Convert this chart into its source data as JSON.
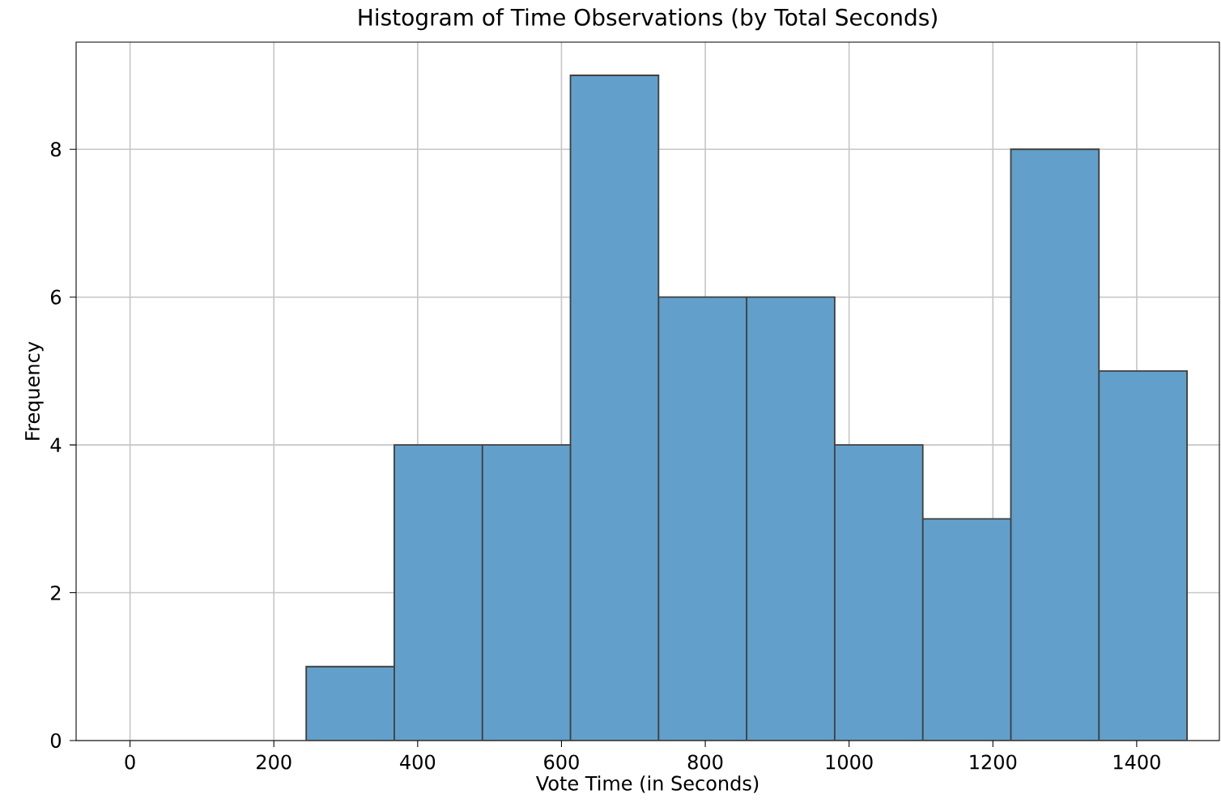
{
  "chart_data": {
    "type": "histogram",
    "title": "Histogram of Time Observations (by Total Seconds)",
    "xlabel": "Vote Time (in Seconds)",
    "ylabel": "Frequency",
    "bins": [
      245,
      367.5,
      490,
      612.5,
      735,
      857.5,
      980,
      1102.5,
      1225,
      1347.5,
      1470
    ],
    "values": [
      1,
      4,
      4,
      9,
      6,
      6,
      4,
      3,
      8,
      5
    ],
    "color": "#62a0cb",
    "xlim": [
      -75,
      1515
    ],
    "ylim": [
      0,
      9.45
    ],
    "xticks": [
      0,
      200,
      400,
      600,
      800,
      1000,
      1200,
      1400
    ],
    "yticks": [
      0,
      2,
      4,
      6,
      8
    ],
    "grid": true
  }
}
